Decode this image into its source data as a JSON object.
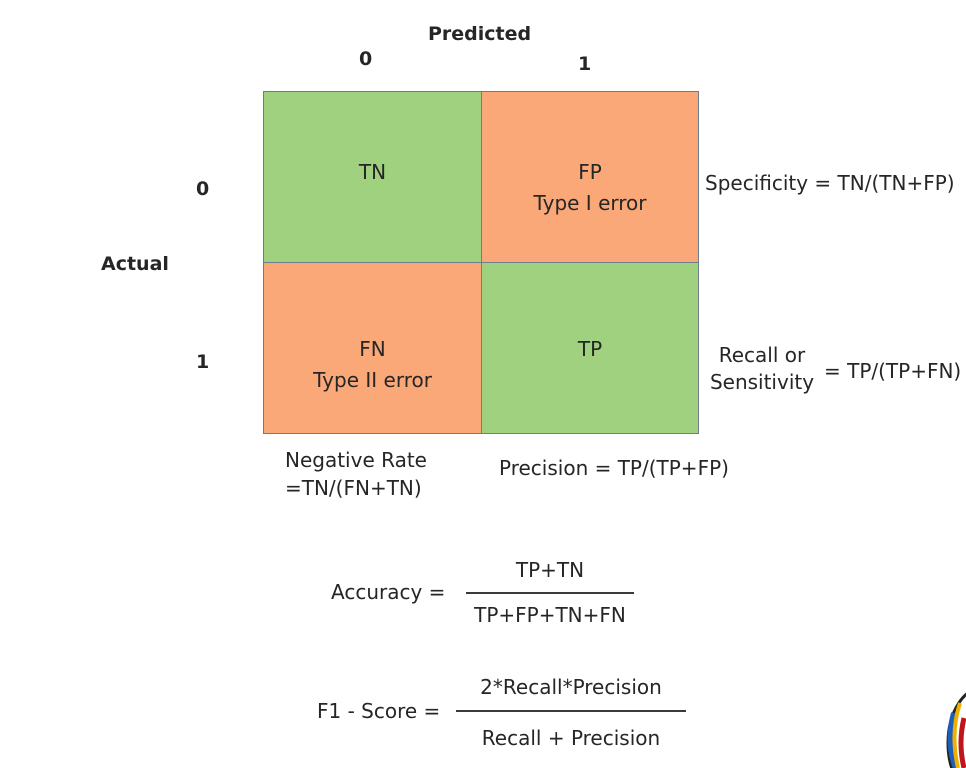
{
  "axes": {
    "predicted_title": "Predicted",
    "actual_title": "Actual",
    "predicted_ticks": [
      "0",
      "1"
    ],
    "actual_ticks": [
      "0",
      "1"
    ]
  },
  "cells": {
    "tn": {
      "label": "TN"
    },
    "fp": {
      "label": "FP",
      "sublabel": "Type I error"
    },
    "fn": {
      "label": "FN",
      "sublabel": "Type II error"
    },
    "tp": {
      "label": "TP"
    }
  },
  "colors": {
    "correct": "#9fd17e",
    "error": "#fba878"
  },
  "metrics": {
    "specificity": "Specificity = TN/(TN+FP)",
    "recall_line1": "Recall or",
    "recall_line2": "Sensitivity",
    "recall_formula": "= TP/(TP+FN)",
    "negative_rate_line1": "Negative Rate",
    "negative_rate_line2": "=TN/(FN+TN)",
    "precision": "Precision = TP/(TP+FP)"
  },
  "formulas": {
    "accuracy": {
      "label": "Accuracy =",
      "numerator": "TP+TN",
      "denominator": "TP+FP+TN+FN"
    },
    "f1": {
      "label": "F1 - Score =",
      "numerator": "2*Recall*Precision",
      "denominator": "Recall + Precision"
    }
  }
}
